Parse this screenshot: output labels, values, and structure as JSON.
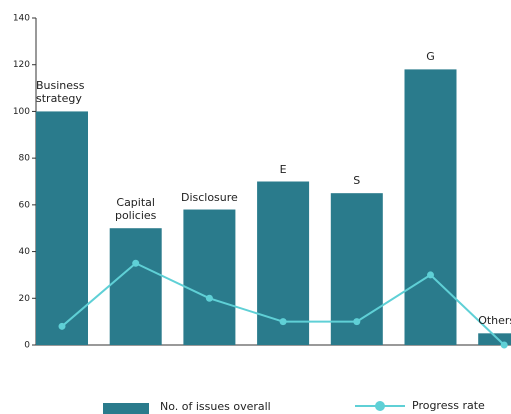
{
  "chart_data": {
    "type": "bar",
    "categories": [
      "Business strategy",
      "Capital policies",
      "Disclosure",
      "E",
      "S",
      "G",
      "Others"
    ],
    "series": [
      {
        "name": "No. of issues overall",
        "type": "bar",
        "color": "#2a7b8c",
        "values": [
          100,
          50,
          58,
          70,
          65,
          118,
          5
        ]
      },
      {
        "name": "Progress rate",
        "type": "line",
        "color": "#5fd0d6",
        "values": [
          8,
          35,
          20,
          10,
          10,
          30,
          0
        ]
      }
    ],
    "ylim": [
      0,
      140
    ],
    "yticks": [
      0,
      20,
      40,
      60,
      80,
      100,
      120,
      140
    ],
    "legend": "bottom"
  }
}
